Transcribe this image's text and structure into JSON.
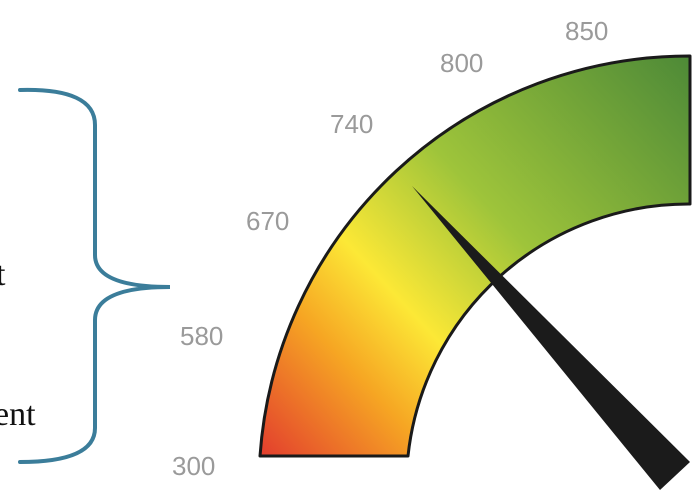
{
  "cropped_text": {
    "line_1": "t",
    "line_2": "ent"
  },
  "gauge": {
    "scale_labels": [
      "300",
      "580",
      "670",
      "740",
      "800",
      "850"
    ],
    "needle_value": 742,
    "colors": {
      "low": "#e23b2e",
      "mid_low": "#f6a623",
      "mid": "#fce836",
      "mid_high": "#9ec43a",
      "high": "#4e8a37",
      "needle": "#1b1b1b",
      "bracket": "#3b7d9a"
    }
  }
}
